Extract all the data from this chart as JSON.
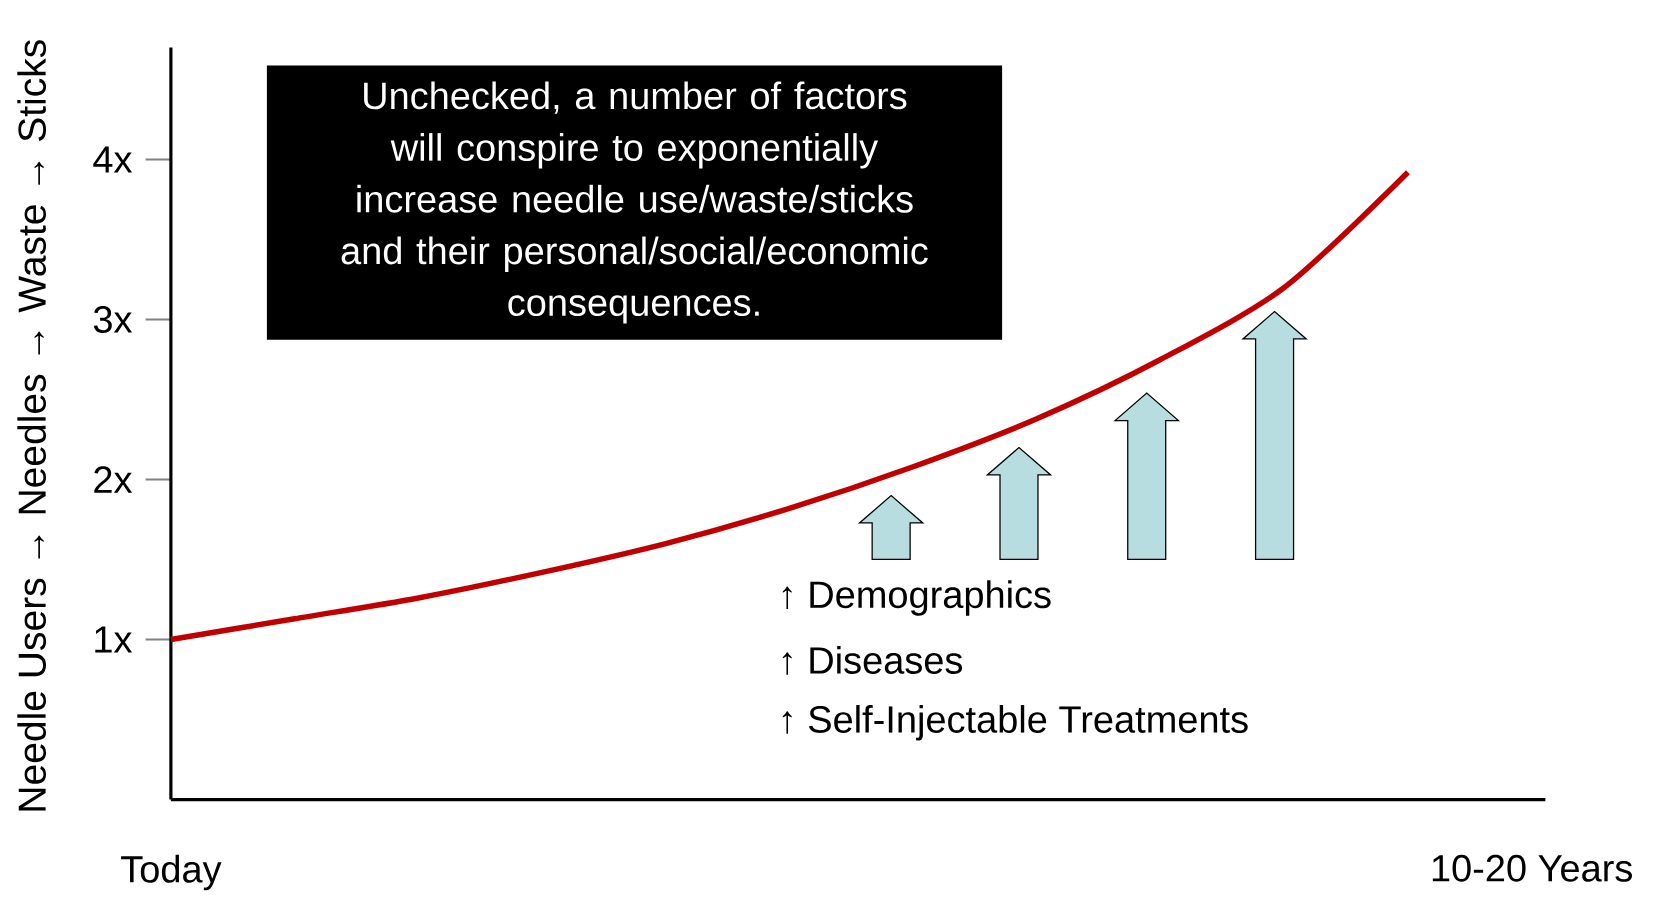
{
  "chart_data": {
    "type": "line",
    "ylabel": "Needle Users → Needles → Waste → Sticks",
    "categories": [
      "Today",
      null,
      null,
      null,
      null,
      null,
      null,
      null,
      null,
      null,
      null,
      "10-20 Years"
    ],
    "values": [
      1.0,
      1.13,
      1.26,
      1.42,
      1.6,
      1.82,
      2.08,
      2.38,
      2.75,
      3.2,
      3.92,
      null
    ],
    "color": "#c00000",
    "ylim": [
      0,
      4.7
    ],
    "yticks": [
      {
        "value": 1,
        "label": "1x"
      },
      {
        "value": 2,
        "label": "2x"
      },
      {
        "value": 3,
        "label": "3x"
      },
      {
        "value": 4,
        "label": "4x"
      }
    ],
    "annotations": [
      "Unchecked, a number of factors will conspire to exponentially increase needle use/waste/sticks and their personal/social/economic consequences.",
      "↑ Demographics",
      "↑ Diseases",
      "↑ Self-Injectable Treatments"
    ]
  }
}
